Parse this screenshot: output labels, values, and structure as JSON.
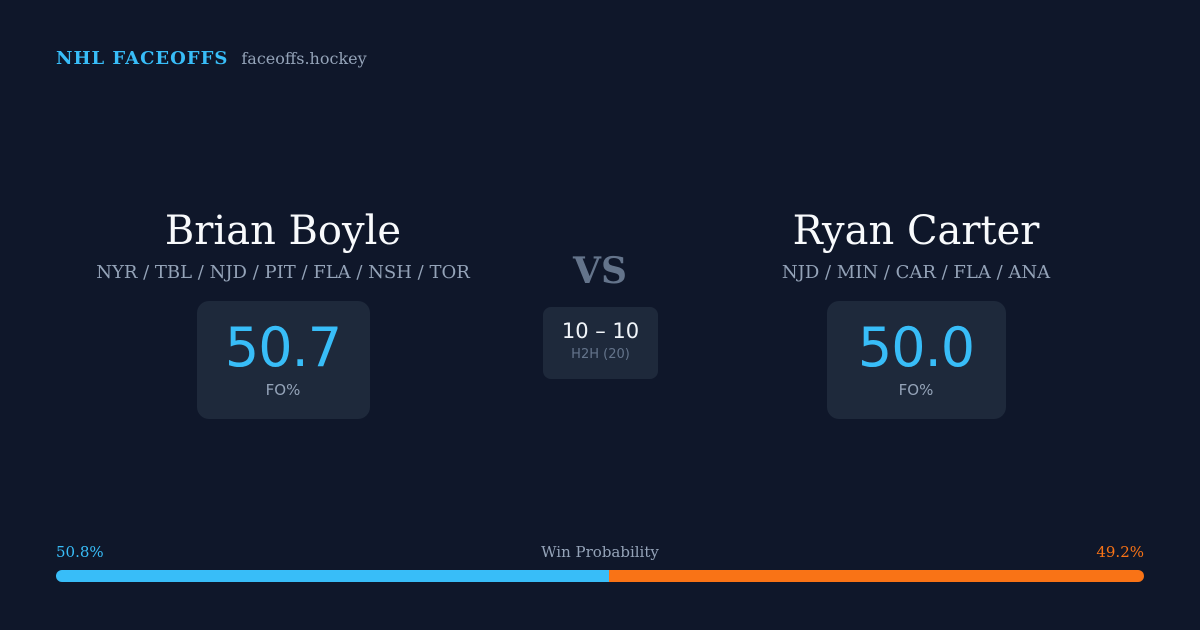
{
  "brand": {
    "name": "NHL FACEOFFS",
    "domain": "faceoffs.hockey"
  },
  "player_left": {
    "name": "Brian Boyle",
    "teams": "NYR / TBL / NJD / PIT / FLA / NSH / TOR",
    "stat_value": "50.7",
    "stat_label": "FO%"
  },
  "player_right": {
    "name": "Ryan Carter",
    "teams": "NJD / MIN / CAR / FLA / ANA",
    "stat_value": "50.0",
    "stat_label": "FO%"
  },
  "versus": {
    "label": "VS",
    "record": "10 – 10",
    "record_label": "H2H (20)"
  },
  "win_probability": {
    "title": "Win Probability",
    "left_label": "50.8%",
    "right_label": "49.2%",
    "left_value": 50.8,
    "right_value": 49.2,
    "left_color": "#38bdf8",
    "right_color": "#f97316"
  }
}
